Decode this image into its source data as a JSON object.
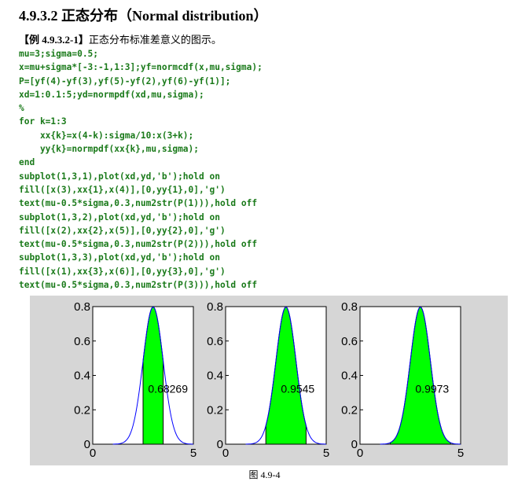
{
  "section": {
    "number": "4.9.3.2",
    "title": "正态分布（Normal distribution）"
  },
  "example": {
    "label": "【例 4.9.3.2-1】",
    "text": "正态分布标准差意义的图示。"
  },
  "code_lines": [
    "mu=3;sigma=0.5;",
    "x=mu+sigma*[-3:-1,1:3];yf=normcdf(x,mu,sigma);",
    "P=[yf(4)-yf(3),yf(5)-yf(2),yf(6)-yf(1)];",
    "xd=1:0.1:5;yd=normpdf(xd,mu,sigma);",
    "%",
    "for k=1:3",
    "    xx{k}=x(4-k):sigma/10:x(3+k);",
    "    yy{k}=normpdf(xx{k},mu,sigma);",
    "end",
    "subplot(1,3,1),plot(xd,yd,'b');hold on",
    "fill([x(3),xx{1},x(4)],[0,yy{1},0],'g')",
    "text(mu-0.5*sigma,0.3,num2str(P(1))),hold off",
    "subplot(1,3,2),plot(xd,yd,'b');hold on",
    "fill([x(2),xx{2},x(5)],[0,yy{2},0],'g')",
    "text(mu-0.5*sigma,0.3,num2str(P(2))),hold off",
    "subplot(1,3,3),plot(xd,yd,'b');hold on",
    "fill([x(1),xx{3},x(6)],[0,yy{3},0],'g')",
    "text(mu-0.5*sigma,0.3,num2str(P(3))),hold off"
  ],
  "figure": {
    "caption": "图 4.9-4",
    "colors": {
      "background": "#d6d6d6",
      "curve": "#0000ff",
      "fill": "#00ff00",
      "axes": "#ffffff"
    }
  },
  "chart_data": [
    {
      "type": "area",
      "xlim": [
        0,
        5
      ],
      "ylim": [
        0,
        0.8
      ],
      "xticks": [
        "0",
        "5"
      ],
      "yticks": [
        "0",
        "0.2",
        "0.4",
        "0.6",
        "0.8"
      ],
      "mu": 3,
      "sigma": 0.5,
      "curve_x_range": [
        1,
        5
      ],
      "fill_range": [
        2.5,
        3.5
      ],
      "annotation": {
        "text": "0.68269",
        "x": 2.75,
        "y": 0.3
      }
    },
    {
      "type": "area",
      "xlim": [
        0,
        5
      ],
      "ylim": [
        0,
        0.8
      ],
      "xticks": [
        "0",
        "5"
      ],
      "yticks": [
        "0",
        "0.2",
        "0.4",
        "0.6",
        "0.8"
      ],
      "mu": 3,
      "sigma": 0.5,
      "curve_x_range": [
        1,
        5
      ],
      "fill_range": [
        2,
        4
      ],
      "annotation": {
        "text": "0.9545",
        "x": 2.75,
        "y": 0.3
      }
    },
    {
      "type": "area",
      "xlim": [
        0,
        5
      ],
      "ylim": [
        0,
        0.8
      ],
      "xticks": [
        "0",
        "5"
      ],
      "yticks": [
        "0",
        "0.2",
        "0.4",
        "0.6",
        "0.8"
      ],
      "mu": 3,
      "sigma": 0.5,
      "curve_x_range": [
        1,
        5
      ],
      "fill_range": [
        1.5,
        4.5
      ],
      "annotation": {
        "text": "0.9973",
        "x": 2.75,
        "y": 0.3
      }
    }
  ]
}
